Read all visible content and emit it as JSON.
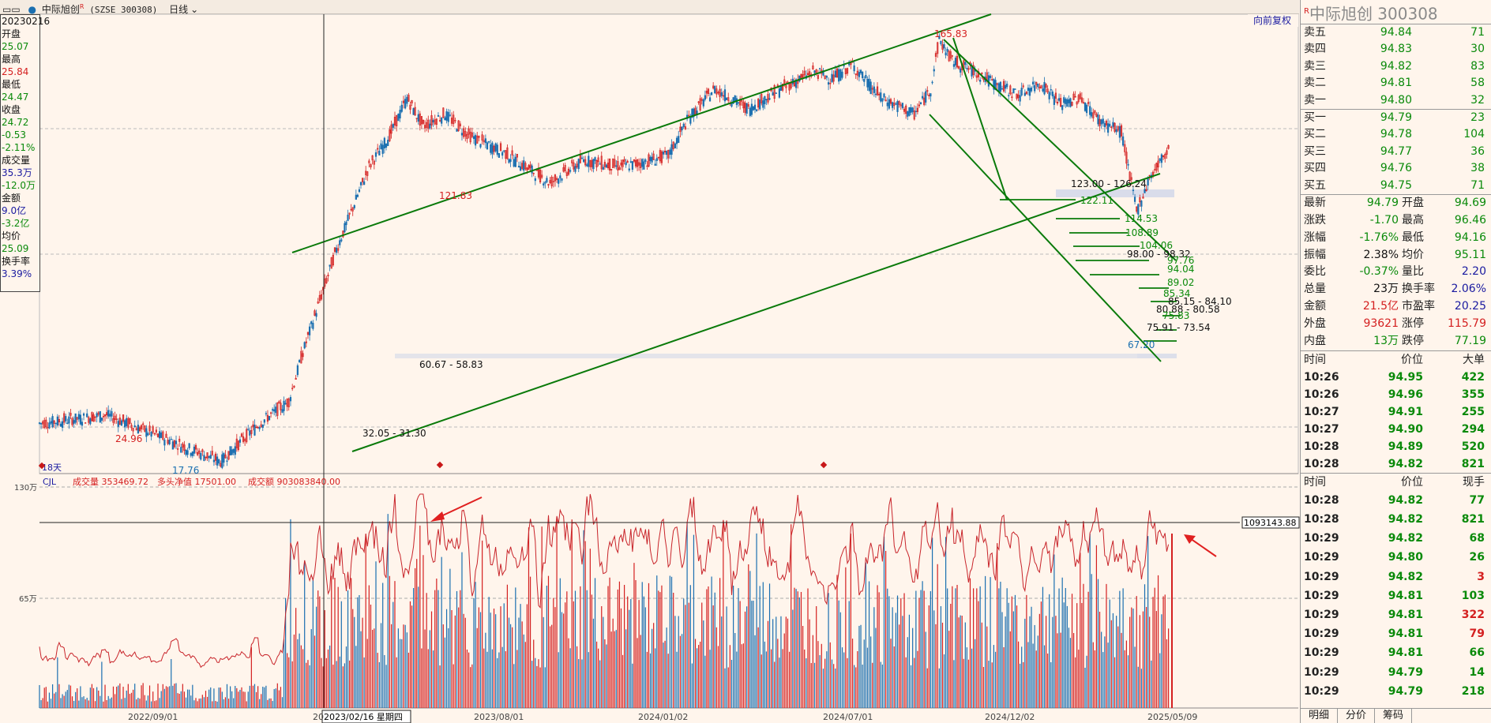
{
  "header": {
    "icon_text": "▭▭",
    "stock_name": "中际旭创",
    "superscript": "R",
    "code_text": "(SZSE 300308)",
    "period": "日线"
  },
  "left_info": {
    "items": [
      {
        "text": "20230216",
        "color": "#111111"
      },
      {
        "text": "开盘",
        "color": "#111111"
      },
      {
        "text": "25.07",
        "color": "#0a8a0a"
      },
      {
        "text": "最高",
        "color": "#111111"
      },
      {
        "text": "25.84",
        "color": "#d42020"
      },
      {
        "text": "最低",
        "color": "#111111"
      },
      {
        "text": "24.47",
        "color": "#0a8a0a"
      },
      {
        "text": "收盘",
        "color": "#111111"
      },
      {
        "text": "24.72",
        "color": "#0a8a0a"
      },
      {
        "text": "-0.53",
        "color": "#0a8a0a"
      },
      {
        "text": "-2.11%",
        "color": "#0a8a0a"
      },
      {
        "text": "成交量",
        "color": "#111111"
      },
      {
        "text": "35.3万",
        "color": "#1a1aa0"
      },
      {
        "text": "-12.0万",
        "color": "#0a8a0a"
      },
      {
        "text": "金额",
        "color": "#111111"
      },
      {
        "text": "9.0亿",
        "color": "#1a1aa0"
      },
      {
        "text": "-3.2亿",
        "color": "#0a8a0a"
      },
      {
        "text": "均价",
        "color": "#111111"
      },
      {
        "text": "25.09",
        "color": "#0a8a0a"
      },
      {
        "text": "换手率",
        "color": "#111111"
      },
      {
        "text": "3.39%",
        "color": "#1a1aa0"
      }
    ]
  },
  "chart_labels": {
    "restore_button": "向前复权",
    "volume_header": {
      "indicator": "CJL",
      "vol": "成交量 353469.72",
      "net": "多头净值 17501.00",
      "amount": "成交额 903083840.00"
    },
    "vol_axis": [
      "130万",
      "65万"
    ],
    "crosshair_value": "1093143.88",
    "crosshair_date": "2023/02/16 星期四",
    "x_ticks": [
      "2022/09/01",
      "2023/08/01",
      "2024/01/02",
      "2024/07/01",
      "2024/12/02",
      "2025/05/09"
    ],
    "stray_tick": "20",
    "day_badge": "18天"
  },
  "chart_data": {
    "type": "candlestick",
    "title": "中际旭创 (SZSE 300308) 日线",
    "price_marks": [
      {
        "label": "165.83",
        "color": "#d42020"
      },
      {
        "label": "121.83",
        "color": "#d42020"
      },
      {
        "label": "24.96",
        "color": "#d42020"
      },
      {
        "label": "17.76",
        "color": "#1a6fb0"
      },
      {
        "label": "67.20",
        "color": "#1a6fb0"
      },
      {
        "label": "60.67 - 58.83",
        "color": "#111111"
      },
      {
        "label": "32.05 - 31.30",
        "color": "#111111"
      },
      {
        "label": "123.00 - 126.24",
        "color": "#111111"
      },
      {
        "label": "122.11",
        "color": "#0a8a0a"
      },
      {
        "label": "114.53",
        "color": "#0a8a0a"
      },
      {
        "label": "108.89",
        "color": "#0a8a0a"
      },
      {
        "label": "104.06",
        "color": "#0a8a0a"
      },
      {
        "label": "98.00 - 98.32",
        "color": "#111111"
      },
      {
        "label": "97.76",
        "color": "#0a8a0a"
      },
      {
        "label": "94.04",
        "color": "#0a8a0a"
      },
      {
        "label": "89.02",
        "color": "#0a8a0a"
      },
      {
        "label": "85.34",
        "color": "#0a8a0a"
      },
      {
        "label": "85.15 - 84.10",
        "color": "#111111"
      },
      {
        "label": "80.88 - 80.58",
        "color": "#111111"
      },
      {
        "label": "75.83",
        "color": "#0a8a0a"
      },
      {
        "label": "75.91 - 73.54",
        "color": "#111111"
      }
    ],
    "price_path": [
      [
        "2022/07/01",
        22
      ],
      [
        "2022/09/01",
        23
      ],
      [
        "2022/11/01",
        20
      ],
      [
        "2022/12/15",
        18
      ],
      [
        "2023/01/20",
        22
      ],
      [
        "2023/02/16",
        24.72
      ],
      [
        "2023/03/01",
        32
      ],
      [
        "2023/04/01",
        55
      ],
      [
        "2023/05/01",
        85
      ],
      [
        "2023/05/20",
        100
      ],
      [
        "2023/06/05",
        121.83
      ],
      [
        "2023/06/20",
        105
      ],
      [
        "2023/07/10",
        112
      ],
      [
        "2023/08/01",
        100
      ],
      [
        "2023/09/01",
        92
      ],
      [
        "2023/10/15",
        78
      ],
      [
        "2023/11/15",
        88
      ],
      [
        "2023/12/15",
        85
      ],
      [
        "2024/01/02",
        86
      ],
      [
        "2024/02/01",
        90
      ],
      [
        "2024/02/20",
        110
      ],
      [
        "2024/03/15",
        128
      ],
      [
        "2024/04/15",
        115
      ],
      [
        "2024/05/15",
        128
      ],
      [
        "2024/06/15",
        140
      ],
      [
        "2024/07/01",
        135
      ],
      [
        "2024/07/20",
        145
      ],
      [
        "2024/08/15",
        122
      ],
      [
        "2024/09/15",
        112
      ],
      [
        "2024/09/30",
        128
      ],
      [
        "2024/10/08",
        165.83
      ],
      [
        "2024/10/20",
        148
      ],
      [
        "2024/11/10",
        140
      ],
      [
        "2024/12/02",
        130
      ],
      [
        "2024/12/20",
        124
      ],
      [
        "2025/01/10",
        132
      ],
      [
        "2025/01/28",
        118
      ],
      [
        "2025/02/15",
        122
      ],
      [
        "2025/03/05",
        108
      ],
      [
        "2025/03/25",
        102
      ],
      [
        "2025/04/08",
        67.2
      ],
      [
        "2025/04/20",
        80
      ],
      [
        "2025/05/09",
        94.79
      ]
    ],
    "volume_axis": {
      "ticks": [
        "130万",
        "65万"
      ],
      "ymax": 1400000
    },
    "date_range": [
      "2022/07/01",
      "2025/05/15"
    ]
  },
  "quote": {
    "title_flag": "R",
    "title": "中际旭创  300308",
    "asks": [
      {
        "label": "卖五",
        "price": "94.84",
        "vol": "71"
      },
      {
        "label": "卖四",
        "price": "94.83",
        "vol": "30"
      },
      {
        "label": "卖三",
        "price": "94.82",
        "vol": "83"
      },
      {
        "label": "卖二",
        "price": "94.81",
        "vol": "58"
      },
      {
        "label": "卖一",
        "price": "94.80",
        "vol": "32"
      }
    ],
    "bids": [
      {
        "label": "买一",
        "price": "94.79",
        "vol": "23"
      },
      {
        "label": "买二",
        "price": "94.78",
        "vol": "104"
      },
      {
        "label": "买三",
        "price": "94.77",
        "vol": "36"
      },
      {
        "label": "买四",
        "price": "94.76",
        "vol": "38"
      },
      {
        "label": "买五",
        "price": "94.75",
        "vol": "71"
      }
    ],
    "stats": [
      {
        "l1": "最新",
        "v1": "94.79",
        "c1": "#0a8a0a",
        "l2": "开盘",
        "v2": "94.69",
        "c2": "#0a8a0a"
      },
      {
        "l1": "涨跌",
        "v1": "-1.70",
        "c1": "#0a8a0a",
        "l2": "最高",
        "v2": "96.46",
        "c2": "#0a8a0a"
      },
      {
        "l1": "涨幅",
        "v1": "-1.76%",
        "c1": "#0a8a0a",
        "l2": "最低",
        "v2": "94.16",
        "c2": "#0a8a0a"
      },
      {
        "l1": "振幅",
        "v1": "2.38%",
        "c1": "#111111",
        "l2": "均价",
        "v2": "95.11",
        "c2": "#0a8a0a"
      },
      {
        "l1": "委比",
        "v1": "-0.37%",
        "c1": "#0a8a0a",
        "l2": "量比",
        "v2": "2.20",
        "c2": "#1a1aa0"
      },
      {
        "l1": "总量",
        "v1": "23万",
        "c1": "#111111",
        "l2": "换手率",
        "v2": "2.06%",
        "c2": "#1a1aa0"
      },
      {
        "l1": "金额",
        "v1": "21.5亿",
        "c1": "#d42020",
        "l2": "市盈率",
        "v2": "20.25",
        "c2": "#1a1aa0"
      },
      {
        "l1": "外盘",
        "v1": "93621",
        "c1": "#d42020",
        "l2": "涨停",
        "v2": "115.79",
        "c2": "#d42020"
      },
      {
        "l1": "内盘",
        "v1": "13万",
        "c1": "#0a8a0a",
        "l2": "跌停",
        "v2": "77.19",
        "c2": "#0a8a0a"
      }
    ],
    "big_orders_header": {
      "t": "时间",
      "p": "价位",
      "v": "大单"
    },
    "big_orders": [
      {
        "t": "10:26",
        "p": "94.95",
        "v": "422"
      },
      {
        "t": "10:26",
        "p": "94.96",
        "v": "355"
      },
      {
        "t": "10:27",
        "p": "94.91",
        "v": "255"
      },
      {
        "t": "10:27",
        "p": "94.90",
        "v": "294"
      },
      {
        "t": "10:28",
        "p": "94.89",
        "v": "520"
      },
      {
        "t": "10:28",
        "p": "94.82",
        "v": "821"
      }
    ],
    "ticks_header": {
      "t": "时间",
      "p": "价位",
      "v": "现手"
    },
    "ticks": [
      {
        "t": "10:28",
        "p": "94.82",
        "v": "77",
        "c": "#0a8a0a"
      },
      {
        "t": "10:28",
        "p": "94.82",
        "v": "821",
        "c": "#0a8a0a"
      },
      {
        "t": "10:29",
        "p": "94.82",
        "v": "68",
        "c": "#0a8a0a"
      },
      {
        "t": "10:29",
        "p": "94.80",
        "v": "26",
        "c": "#0a8a0a"
      },
      {
        "t": "10:29",
        "p": "94.82",
        "v": "3",
        "c": "#d42020"
      },
      {
        "t": "10:29",
        "p": "94.81",
        "v": "103",
        "c": "#0a8a0a"
      },
      {
        "t": "10:29",
        "p": "94.81",
        "v": "322",
        "c": "#d42020"
      },
      {
        "t": "10:29",
        "p": "94.81",
        "v": "79",
        "c": "#d42020"
      },
      {
        "t": "10:29",
        "p": "94.81",
        "v": "66",
        "c": "#0a8a0a"
      },
      {
        "t": "10:29",
        "p": "94.79",
        "v": "14",
        "c": "#0a8a0a"
      },
      {
        "t": "10:29",
        "p": "94.79",
        "v": "218",
        "c": "#0a8a0a"
      }
    ],
    "tabs": [
      "明细",
      "分价",
      "筹码"
    ]
  },
  "colors": {
    "up": "#d42020",
    "down": "#1a6fb0",
    "trend": "#0a7a0a",
    "background": "#fff5ec"
  }
}
